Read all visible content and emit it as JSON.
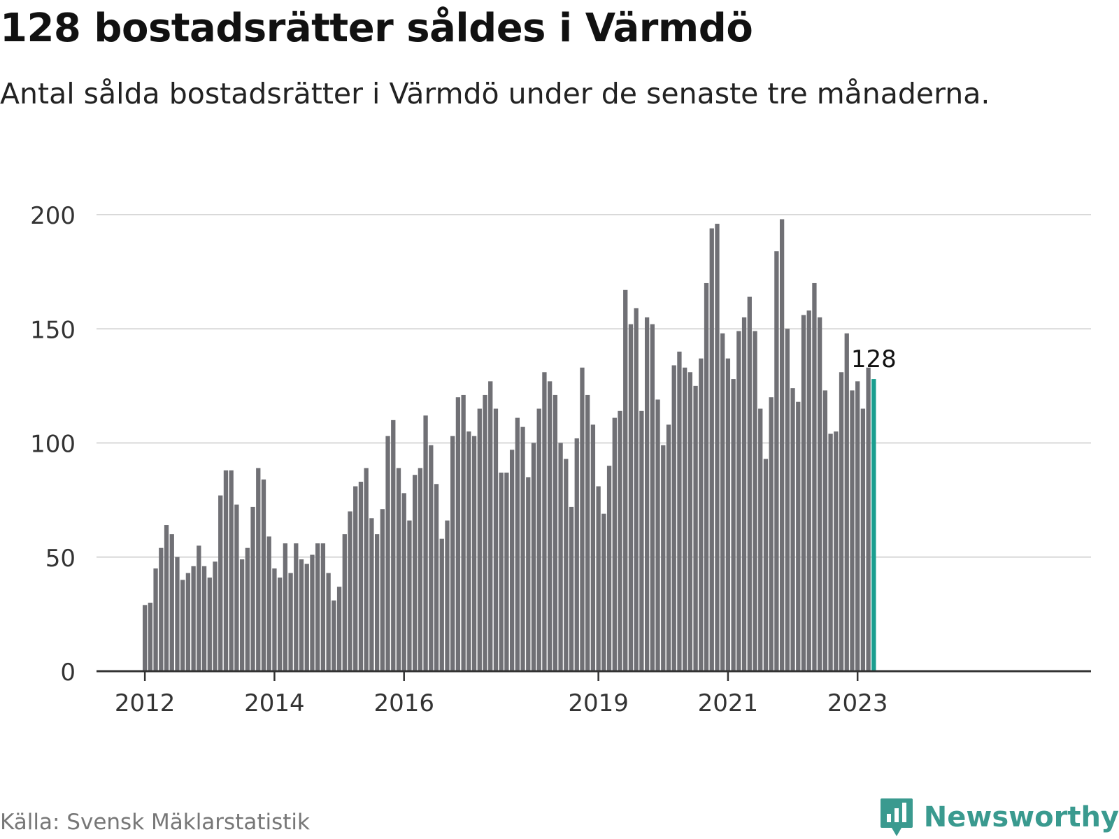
{
  "title": "128 bostadsrätter såldes i Värmdö",
  "subtitle": "Antal sålda bostadsrätter i Värmdö under de senaste tre månaderna.",
  "source": "Källa: Svensk Mäklarstatistik",
  "brand": {
    "name": "Newsworthy",
    "icon": "newsworthy-logo-icon"
  },
  "colors": {
    "bar": "#707075",
    "highlight": "#1a9e8f",
    "grid": "#d9d9d9",
    "axis": "#333333",
    "brand": "#3a9a8f"
  },
  "chart_data": {
    "type": "bar",
    "title": "128 bostadsrätter såldes i Värmdö",
    "xlabel": "",
    "ylabel": "",
    "ylim": [
      0,
      200
    ],
    "yticks": [
      0,
      50,
      100,
      150,
      200
    ],
    "grid": true,
    "start": "2012-01",
    "x_tick_labels": [
      {
        "label": "2012",
        "index": 0
      },
      {
        "label": "2014",
        "index": 24
      },
      {
        "label": "2016",
        "index": 48
      },
      {
        "label": "2019",
        "index": 84
      },
      {
        "label": "2021",
        "index": 108
      },
      {
        "label": "2023",
        "index": 132
      }
    ],
    "values": [
      29,
      30,
      45,
      54,
      64,
      60,
      50,
      40,
      43,
      46,
      55,
      46,
      41,
      48,
      77,
      88,
      88,
      73,
      49,
      54,
      72,
      89,
      84,
      59,
      45,
      41,
      56,
      43,
      56,
      49,
      47,
      51,
      56,
      56,
      43,
      31,
      37,
      60,
      70,
      81,
      83,
      89,
      67,
      60,
      71,
      103,
      110,
      89,
      78,
      66,
      86,
      89,
      112,
      99,
      82,
      58,
      66,
      103,
      120,
      121,
      105,
      103,
      115,
      121,
      127,
      115,
      87,
      87,
      97,
      111,
      107,
      85,
      100,
      115,
      131,
      127,
      121,
      100,
      93,
      72,
      102,
      133,
      121,
      108,
      81,
      69,
      90,
      111,
      114,
      167,
      152,
      159,
      114,
      155,
      152,
      119,
      99,
      108,
      134,
      140,
      133,
      131,
      125,
      137,
      170,
      194,
      196,
      148,
      137,
      128,
      149,
      155,
      164,
      149,
      115,
      93,
      120,
      184,
      198,
      150,
      124,
      118,
      156,
      158,
      170,
      155,
      123,
      104,
      105,
      131,
      148,
      123,
      127,
      115,
      133,
      128
    ],
    "highlight_index": 135,
    "annotation": {
      "index": 135,
      "text": "128"
    }
  }
}
